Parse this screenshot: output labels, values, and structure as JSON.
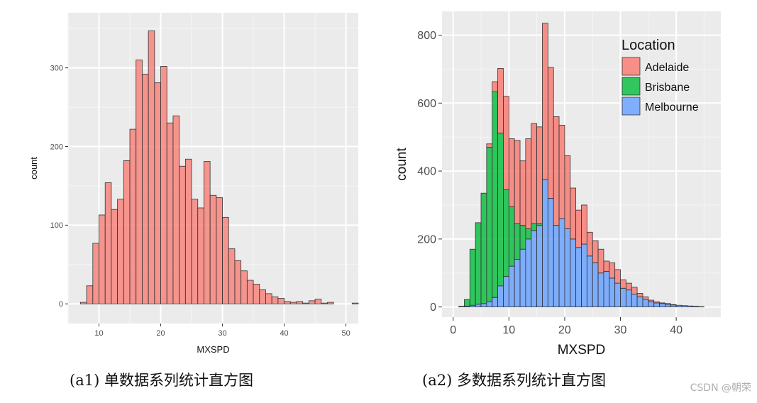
{
  "captions": {
    "a1": "(a1)  单数据系列统计直方图",
    "a2": "(a2)  多数据系列统计直方图"
  },
  "watermark": "CSDN @朝荣",
  "chart_data": [
    {
      "type": "bar",
      "title": "",
      "xlabel": "MXSPD",
      "ylabel": "count",
      "xlim": [
        5,
        52
      ],
      "ylim": [
        -25,
        370
      ],
      "xticks": [
        10,
        20,
        30,
        40,
        50
      ],
      "yticks": [
        0,
        100,
        200,
        300
      ],
      "bin_start": 7,
      "bin_width": 1,
      "fill_color": "#F8766D",
      "grid": true,
      "values": [
        2,
        23,
        77,
        113,
        154,
        120,
        133,
        182,
        222,
        310,
        292,
        347,
        281,
        302,
        230,
        239,
        175,
        184,
        133,
        122,
        181,
        138,
        135,
        110,
        70,
        55,
        42,
        30,
        25,
        18,
        13,
        9,
        7,
        3,
        2,
        3,
        1,
        4,
        6,
        1,
        2,
        0,
        0,
        0,
        1
      ]
    },
    {
      "type": "bar",
      "title": "",
      "xlabel": "MXSPD",
      "ylabel": "count",
      "xlim": [
        -2,
        48
      ],
      "ylim": [
        -30,
        870
      ],
      "xticks": [
        0,
        10,
        20,
        30,
        40
      ],
      "yticks": [
        0,
        200,
        400,
        600,
        800
      ],
      "bin_start": 1,
      "bin_width": 1,
      "stacked": true,
      "grid": true,
      "legend": {
        "title": "Location",
        "position": "top-right"
      },
      "series": [
        {
          "name": "Melbourne",
          "color": "#619CFF",
          "values": [
            0,
            2,
            5,
            8,
            10,
            15,
            28,
            62,
            90,
            120,
            140,
            170,
            200,
            225,
            240,
            375,
            320,
            240,
            260,
            230,
            200,
            175,
            185,
            150,
            130,
            100,
            105,
            85,
            70,
            55,
            50,
            38,
            30,
            22,
            15,
            12,
            10,
            8,
            6,
            5,
            4,
            3,
            2,
            1
          ]
        },
        {
          "name": "Brisbane",
          "color": "#00BA38",
          "values": [
            2,
            20,
            165,
            240,
            325,
            455,
            605,
            450,
            255,
            175,
            105,
            70,
            30,
            20,
            5,
            0,
            0,
            0,
            0,
            0,
            0,
            0,
            0,
            0,
            0,
            0,
            0,
            0,
            0,
            0,
            0,
            0,
            0,
            0,
            0,
            0,
            0,
            0,
            0,
            0,
            0,
            0,
            0,
            0
          ]
        },
        {
          "name": "Adelaide",
          "color": "#F8766D",
          "values": [
            0,
            0,
            0,
            0,
            0,
            10,
            30,
            190,
            275,
            200,
            245,
            190,
            265,
            295,
            285,
            460,
            385,
            320,
            275,
            215,
            150,
            110,
            115,
            70,
            65,
            70,
            30,
            45,
            40,
            25,
            20,
            20,
            10,
            8,
            5,
            3,
            2,
            2,
            1,
            0,
            0,
            0,
            0,
            0
          ]
        }
      ]
    }
  ]
}
